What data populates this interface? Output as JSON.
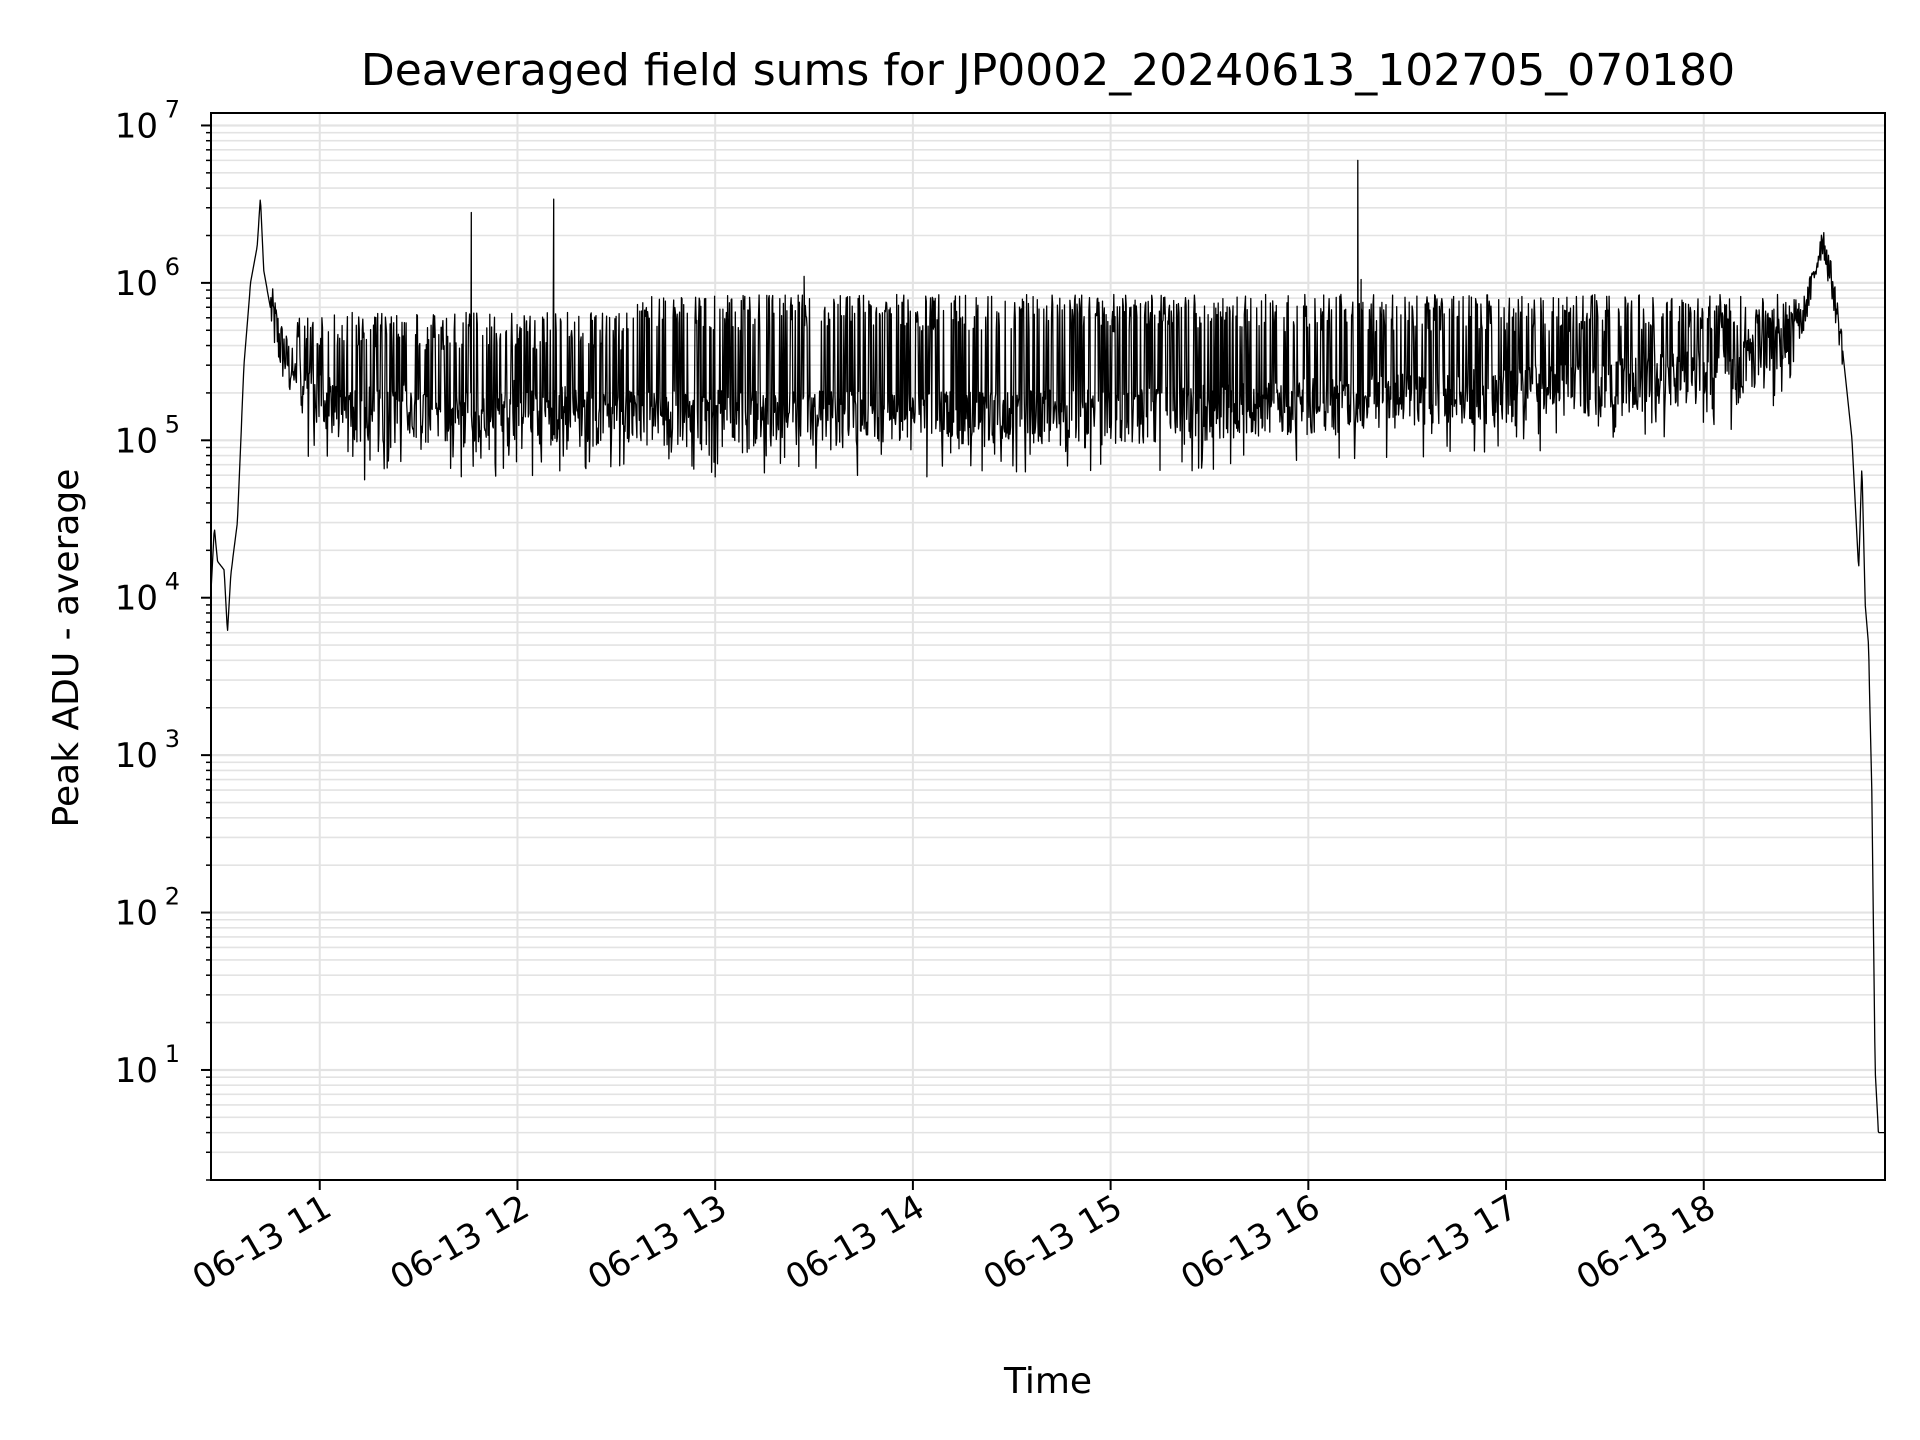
{
  "chart_data": {
    "type": "line",
    "title": "Deaveraged field sums for JP0002_20240613_102705_070180",
    "xlabel": "Time",
    "ylabel": "Peak ADU - average",
    "yscale": "log",
    "ylim": [
      2,
      12000000
    ],
    "xlim": [
      "06-13 10:27",
      "06-13 18:55"
    ],
    "grid": true,
    "line_color": "#000000",
    "grid_color": "#e3e3e3",
    "x_ticks": [
      "06-13 11",
      "06-13 12",
      "06-13 13",
      "06-13 14",
      "06-13 15",
      "06-13 16",
      "06-13 17",
      "06-13 18"
    ],
    "y_ticks": [
      {
        "base": "10",
        "exp": "1",
        "value": 10
      },
      {
        "base": "10",
        "exp": "2",
        "value": 100
      },
      {
        "base": "10",
        "exp": "3",
        "value": 1000
      },
      {
        "base": "10",
        "exp": "4",
        "value": 10000
      },
      {
        "base": "10",
        "exp": "5",
        "value": 100000
      },
      {
        "base": "10",
        "exp": "6",
        "value": 1000000
      },
      {
        "base": "10",
        "exp": "7",
        "value": 10000000
      }
    ],
    "series": [
      {
        "band": {
          "low_typical": 100000,
          "high_typical": 700000,
          "note": "dense oscillation between low and high envelope from 10:52 to 18:32"
        },
        "points": [
          {
            "t": "10:27",
            "y": 11000
          },
          {
            "t": "10:28",
            "y": 28000
          },
          {
            "t": "10:29",
            "y": 17000
          },
          {
            "t": "10:31",
            "y": 15000
          },
          {
            "t": "10:32",
            "y": 6000
          },
          {
            "t": "10:33",
            "y": 14000
          },
          {
            "t": "10:35",
            "y": 30000
          },
          {
            "t": "10:37",
            "y": 300000
          },
          {
            "t": "10:39",
            "y": 1000000
          },
          {
            "t": "10:41",
            "y": 1700000
          },
          {
            "t": "10:42",
            "y": 3500000
          },
          {
            "t": "10:43",
            "y": 1200000
          },
          {
            "t": "10:45",
            "y": 700000
          },
          {
            "t": "10:48",
            "y": 400000
          },
          {
            "t": "10:52",
            "y": 250000
          },
          {
            "t": "10:58",
            "y": 170000
          },
          {
            "t": "11:10",
            "y": 140000
          },
          {
            "t": "11:30",
            "y": 130000
          },
          {
            "t": "11:50",
            "y": 130000
          },
          {
            "t": "12:30",
            "y": 130000
          },
          {
            "t": "13:30",
            "y": 130000
          },
          {
            "t": "14:30",
            "y": 130000
          },
          {
            "t": "15:30",
            "y": 140000
          },
          {
            "t": "16:30",
            "y": 170000
          },
          {
            "t": "17:30",
            "y": 200000
          },
          {
            "t": "18:10",
            "y": 250000
          },
          {
            "t": "18:28",
            "y": 450000
          },
          {
            "t": "18:33",
            "y": 1000000
          },
          {
            "t": "18:36",
            "y": 2000000
          },
          {
            "t": "18:39",
            "y": 1000000
          },
          {
            "t": "18:42",
            "y": 400000
          },
          {
            "t": "18:45",
            "y": 100000
          },
          {
            "t": "18:47",
            "y": 15000
          },
          {
            "t": "18:48",
            "y": 70000
          },
          {
            "t": "18:49",
            "y": 9000
          },
          {
            "t": "18:50",
            "y": 5000
          },
          {
            "t": "18:51",
            "y": 600
          },
          {
            "t": "18:52",
            "y": 10
          },
          {
            "t": "18:53",
            "y": 4
          },
          {
            "t": "18:55",
            "y": 4
          }
        ],
        "spikes": [
          {
            "t": "11:46",
            "y": 2800000
          },
          {
            "t": "12:11",
            "y": 3400000
          },
          {
            "t": "13:27",
            "y": 1100000
          },
          {
            "t": "16:15",
            "y": 6000000
          },
          {
            "t": "16:16",
            "y": 1050000
          }
        ]
      }
    ]
  }
}
